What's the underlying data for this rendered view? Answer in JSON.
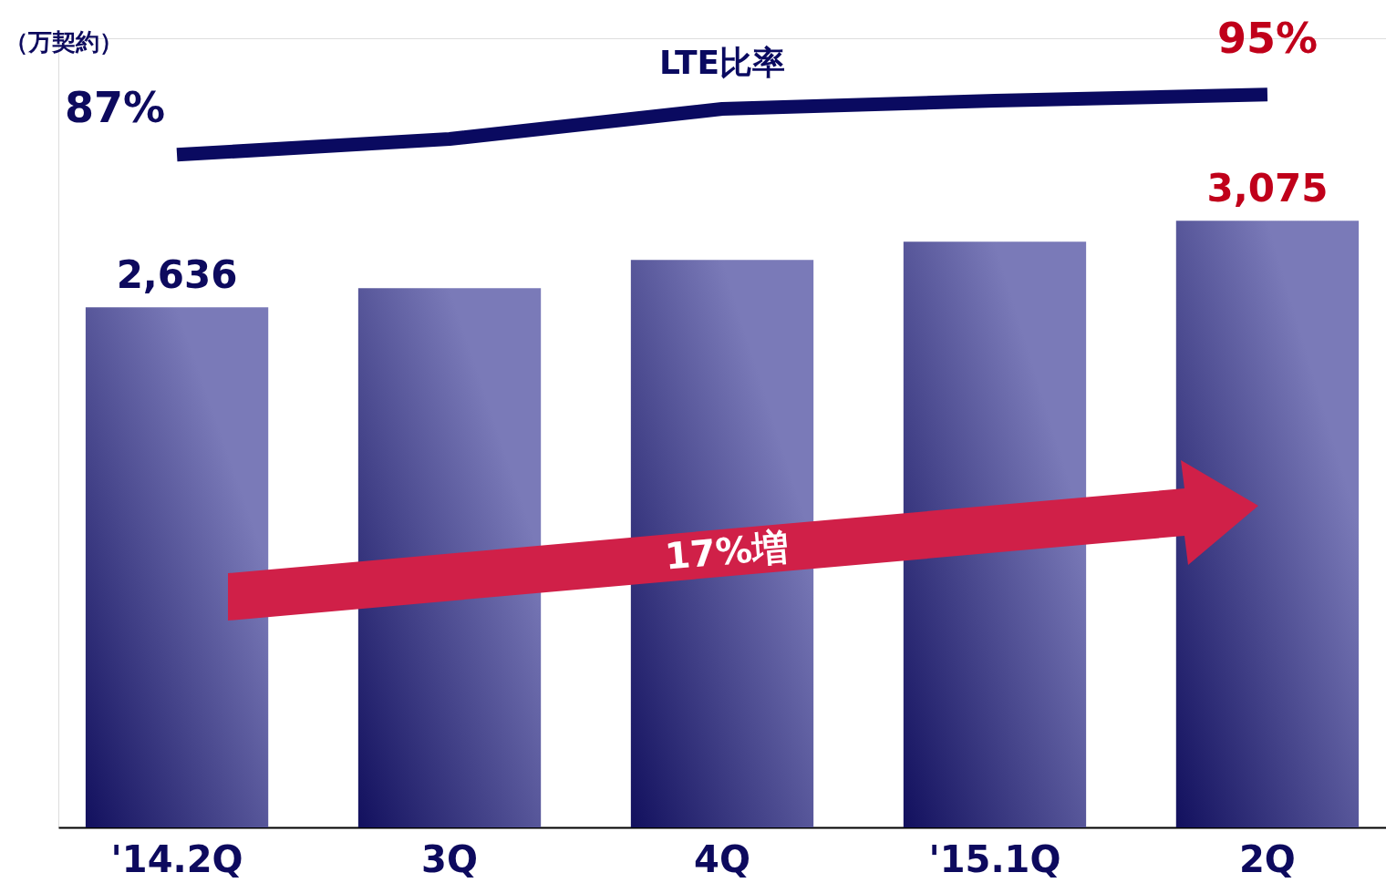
{
  "chart_data": {
    "type": "bar",
    "ylabel": "（万契約）",
    "categories": [
      "'14.2Q",
      "3Q",
      "4Q",
      "'15.1Q",
      "2Q"
    ],
    "ylim": [
      0,
      4000
    ],
    "y2lim": [
      -2.5,
      102.5
    ],
    "relative": false,
    "legend": false,
    "grid": false,
    "series": [
      {
        "color": "#7a7ab8",
        "values": [
          2636,
          2733,
          2876,
          2969,
          3075
        ],
        "value_labels": [
          "2,636",
          null,
          null,
          null,
          "3,075"
        ]
      },
      {
        "type": "line",
        "name": "LTE比率",
        "axis": "y2",
        "color": "#0a0a60",
        "values": [
          87,
          89.1,
          93.1,
          94.2,
          95
        ],
        "value_labels": [
          "87%",
          null,
          null,
          null,
          "95%"
        ]
      }
    ],
    "annotations": [
      "17%増"
    ]
  }
}
